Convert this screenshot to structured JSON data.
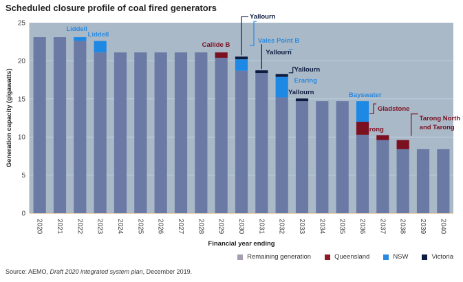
{
  "chart_data": {
    "type": "bar",
    "stacked": true,
    "title": "Scheduled closure profile of coal fired generators",
    "xlabel": "Financial year ending",
    "ylabel": "Generation capacity (gigawatts)",
    "ylim": [
      0,
      25
    ],
    "yticks": [
      0,
      5,
      10,
      15,
      20,
      25
    ],
    "grid": true,
    "legend_position": "bottom-right",
    "categories": [
      "2020",
      "2021",
      "2022",
      "2023",
      "2024",
      "2025",
      "2026",
      "2027",
      "2028",
      "2029",
      "2030",
      "2031",
      "2032",
      "2033",
      "2034",
      "2035",
      "2036",
      "2037",
      "2038",
      "2039",
      "2040"
    ],
    "series": [
      {
        "name": "Remaining generation",
        "color": "#6b7aa5",
        "values": [
          23.1,
          23.1,
          22.6,
          21.1,
          21.1,
          21.1,
          21.1,
          21.1,
          21.1,
          20.4,
          18.7,
          18.4,
          15.2,
          14.7,
          14.7,
          14.7,
          10.3,
          9.6,
          8.4,
          8.4,
          8.4
        ]
      },
      {
        "name": "Queensland",
        "color": "#7a1020",
        "values": [
          0,
          0,
          0,
          0,
          0,
          0,
          0,
          0,
          0,
          0.7,
          0,
          0,
          0,
          0,
          0,
          0,
          1.7,
          0.65,
          1.2,
          0,
          0
        ]
      },
      {
        "name": "NSW",
        "color": "#1e88e5",
        "values": [
          0,
          0,
          0.5,
          1.5,
          0,
          0,
          0,
          0,
          0,
          0,
          1.5,
          0,
          2.7,
          0,
          0,
          0,
          2.7,
          0,
          0,
          0,
          0
        ]
      },
      {
        "name": "Victoria",
        "color": "#0d1b3e",
        "values": [
          0,
          0,
          0,
          0,
          0,
          0,
          0,
          0,
          0,
          0,
          0.35,
          0.35,
          0.35,
          0.35,
          0,
          0,
          0,
          0,
          0,
          0,
          0
        ]
      }
    ],
    "annotations": [
      {
        "text": "Liddell",
        "year": "2022",
        "series": "NSW"
      },
      {
        "text": "Liddell",
        "year": "2023",
        "series": "NSW"
      },
      {
        "text": "Callide B",
        "year": "2029",
        "series": "Queensland"
      },
      {
        "text": "Yallourn",
        "year": "2030",
        "series": "Victoria"
      },
      {
        "text": "Vales Point B",
        "year": "2030",
        "series": "NSW"
      },
      {
        "text": "Yallourn",
        "year": "2031",
        "series": "Victoria"
      },
      {
        "text": "Yallourn",
        "year": "2032",
        "series": "Victoria"
      },
      {
        "text": "Eraring",
        "year": "2032",
        "series": "NSW"
      },
      {
        "text": "Yallourn",
        "year": "2033",
        "series": "Victoria"
      },
      {
        "text": "Bayswater",
        "year": "2036",
        "series": "NSW"
      },
      {
        "text": "Gladstone",
        "year": "2036",
        "series": "Queensland"
      },
      {
        "text": "Tarong",
        "year": "2037",
        "series": "Queensland"
      },
      {
        "text": "Tarong North and Tarong",
        "year": "2038",
        "series": "Queensland"
      }
    ]
  },
  "source": {
    "prefix": "Source: AEMO, ",
    "italic": "Draft 2020 integrated system plan",
    "suffix": ", December 2019."
  }
}
